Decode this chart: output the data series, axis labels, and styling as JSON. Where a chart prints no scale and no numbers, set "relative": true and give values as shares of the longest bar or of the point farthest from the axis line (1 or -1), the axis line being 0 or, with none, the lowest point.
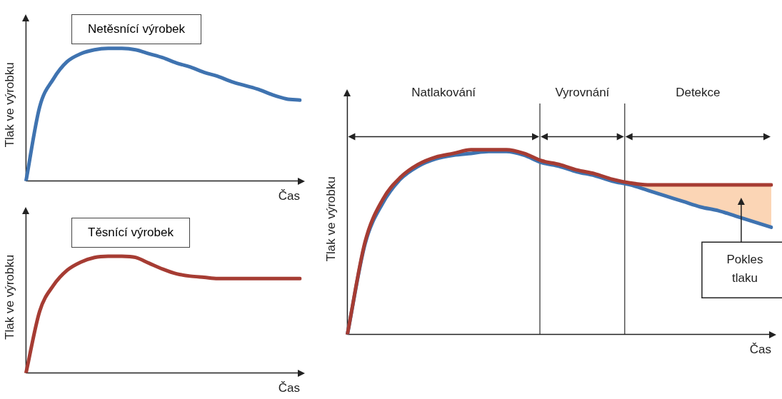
{
  "chart_data": [
    {
      "type": "line",
      "relative": true,
      "title": "Netěsnící výrobek",
      "xlabel": "Čas",
      "ylabel": "Tlak ve výrobku",
      "marker": "none",
      "categories": [
        null,
        null,
        null,
        null,
        null,
        null,
        null,
        null,
        null,
        null,
        null,
        null,
        null,
        null,
        null,
        null,
        null,
        null,
        null,
        null,
        null
      ],
      "series": [
        {
          "color": "#3f73b0",
          "values": [
            0,
            0.56,
            0.77,
            0.9,
            0.96,
            0.99,
            1,
            1,
            0.99,
            0.96,
            0.93,
            0.89,
            0.86,
            0.82,
            0.79,
            0.75,
            0.72,
            0.69,
            0.65,
            0.62,
            0.61
          ]
        }
      ]
    },
    {
      "type": "line",
      "relative": true,
      "title": "Těsnící výrobek",
      "xlabel": "Čas",
      "ylabel": "Tlak ve výrobku",
      "marker": "none",
      "categories": [
        null,
        null,
        null,
        null,
        null,
        null,
        null,
        null,
        null,
        null,
        null,
        null,
        null,
        null,
        null,
        null,
        null,
        null,
        null,
        null,
        null
      ],
      "series": [
        {
          "color": "#a63c33",
          "values": [
            0,
            0.53,
            0.75,
            0.88,
            0.95,
            0.99,
            1,
            1,
            0.99,
            0.94,
            0.89,
            0.85,
            0.83,
            0.82,
            0.81,
            0.81,
            0.81,
            0.81,
            0.81,
            0.81,
            0.81
          ]
        }
      ]
    },
    {
      "type": "line",
      "relative": true,
      "xlabel": "Čas",
      "ylabel": "Tlak ve výrobku",
      "marker": "none",
      "categories": [
        null,
        null,
        null,
        null,
        null,
        null,
        null,
        null,
        null,
        null,
        null,
        null,
        null,
        null,
        null,
        null,
        null,
        null,
        null,
        null,
        null,
        null,
        null,
        null,
        null
      ],
      "series": [
        {
          "color": "#a63c33",
          "values": [
            0,
            0.5,
            0.73,
            0.85,
            0.92,
            0.96,
            0.98,
            1,
            1,
            1,
            0.98,
            0.94,
            0.92,
            0.89,
            0.87,
            0.84,
            0.82,
            0.81,
            0.81,
            0.81,
            0.81,
            0.81,
            0.81,
            0.81,
            0.81
          ],
          "lower": [
            null,
            null,
            null,
            null,
            null,
            null,
            null,
            null,
            null,
            null,
            null,
            null,
            null,
            null,
            null,
            0.83,
            0.81,
            0.78,
            0.75,
            0.72,
            0.69,
            0.67,
            0.64,
            0.61,
            0.58
          ],
          "upper": [
            null,
            null,
            null,
            null,
            null,
            null,
            null,
            null,
            null,
            null,
            null,
            null,
            null,
            null,
            null,
            0.84,
            0.82,
            0.81,
            0.81,
            0.81,
            0.81,
            0.81,
            0.81,
            0.81,
            0.81
          ]
        },
        {
          "color": "#3f73b0",
          "values": [
            0,
            0.49,
            0.71,
            0.84,
            0.91,
            0.95,
            0.97,
            0.98,
            0.99,
            0.99,
            0.97,
            0.93,
            0.91,
            0.88,
            0.86,
            0.83,
            0.81,
            0.78,
            0.75,
            0.72,
            0.69,
            0.67,
            0.64,
            0.61,
            0.58
          ]
        }
      ],
      "annotations": [
        "Natlakování",
        "Vyrovnání",
        "Detekce",
        "Pokles tlaku"
      ]
    }
  ]
}
